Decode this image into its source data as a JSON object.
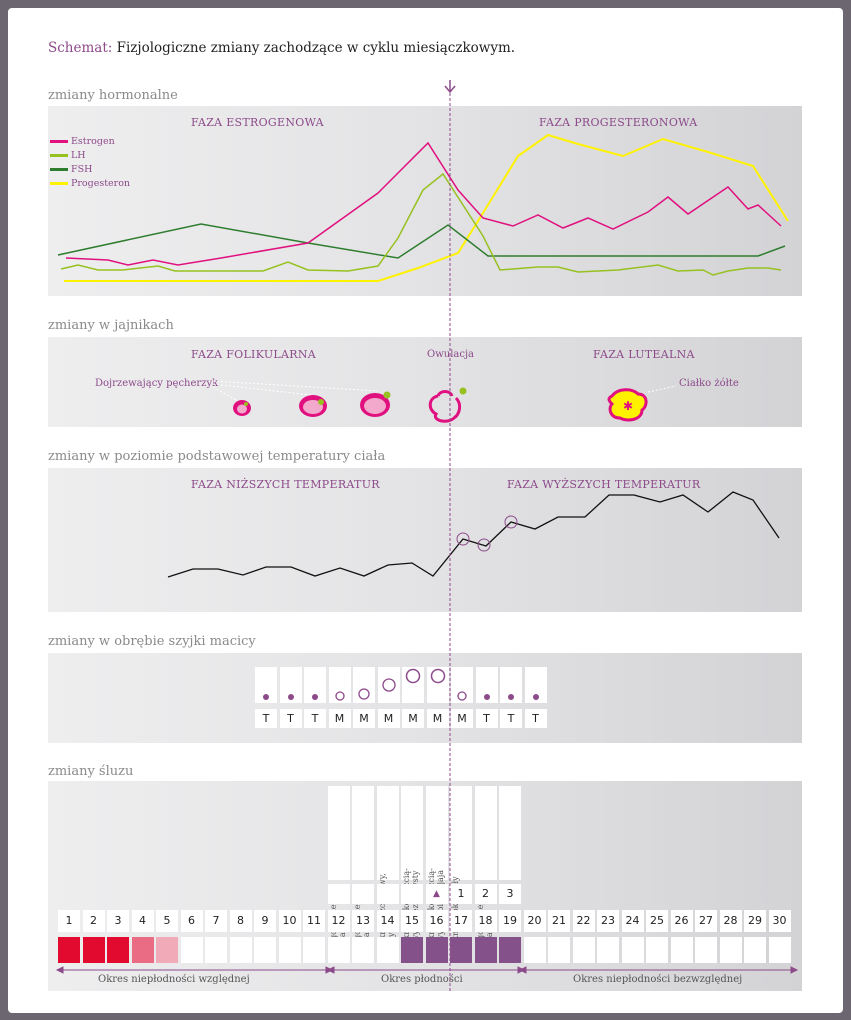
{
  "header": {
    "prefix": "Schemat:",
    "title": "Fizjologiczne zmiany zachodzące w cyklu miesiączkowym."
  },
  "colors": {
    "estrogen": "#e0117f",
    "lh": "#97c11f",
    "fsh": "#2e7d2e",
    "progesterone": "#fff200",
    "accent": "#8c4a8a",
    "menstrual_dark": "#e30a2f",
    "menstrual_light": "#e96b84",
    "menstrual_pale": "#f1aab8",
    "fertile": "#84518a"
  },
  "hormones": {
    "section_title": "zmiany hormonalne",
    "phase_left": "FAZA ESTROGENOWA",
    "phase_right": "FAZA PROGESTERONOWA",
    "legend": [
      "Estrogen",
      "LH",
      "FSH",
      "Progesteron"
    ]
  },
  "ovaries": {
    "section_title": "zmiany w jajnikach",
    "phase_left": "FAZA FOLIKULARNA",
    "ovulation": "Owulacja",
    "phase_right": "FAZA LUTEALNA",
    "follicle_label": "Dojrzewający pęcherzyk",
    "corpus_label": "Ciałko żółte"
  },
  "temperature": {
    "section_title": "zmiany w poziomie podstawowej temperatury ciała",
    "phase_left": "FAZA NIŻSZYCH TEMPERATUR",
    "phase_right": "FAZA WYŻSZYCH TEMPERATUR"
  },
  "cervix": {
    "section_title": "zmiany w obrębie szyjki macicy",
    "labels": [
      "T",
      "T",
      "T",
      "M",
      "M",
      "M",
      "M",
      "M",
      "M",
      "T",
      "T",
      "T"
    ]
  },
  "mucus": {
    "section_title": "zmiany śluzu",
    "descriptions": [
      "wilgotno, lepki, żółtawy",
      "wilgotno, lepki, żółtawy",
      "mokro, rozciągliwy, biały",
      "mokro śliśko, rozcią-gliwy, przezroczysty",
      "mokro śliśko, rozcią-gliwy, jak białko jaja",
      "wilgotno, lepki, biały",
      "wilgotno, lepki, żółtawy",
      "sucho"
    ],
    "peak_marker": "▲",
    "post_peak": [
      "1",
      "2",
      "3"
    ],
    "days": [
      "1",
      "2",
      "3",
      "4",
      "5",
      "6",
      "7",
      "8",
      "9",
      "10",
      "11",
      "12",
      "13",
      "14",
      "15",
      "16",
      "17",
      "18",
      "19",
      "20",
      "21",
      "22",
      "23",
      "24",
      "25",
      "26",
      "27",
      "28",
      "29",
      "30"
    ],
    "periods": [
      "Okres niepłodności względnej",
      "Okres płodności",
      "Okres niepłodności bezwzględnej"
    ]
  }
}
